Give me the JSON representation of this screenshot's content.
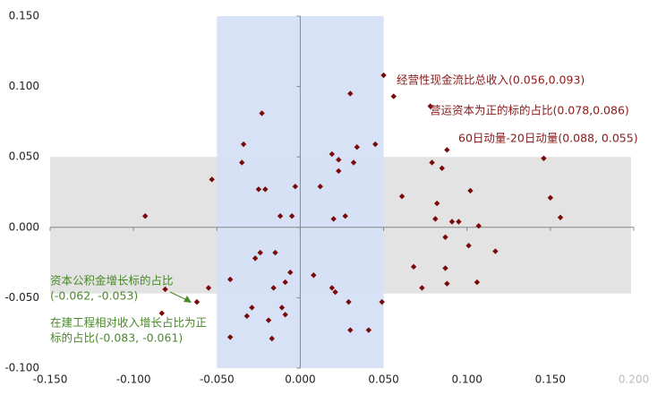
{
  "chart_data": {
    "type": "scatter",
    "x": [
      0.05,
      0.03,
      0.056,
      0.078,
      -0.023,
      -0.034,
      0.045,
      0.034,
      0.019,
      0.088,
      0.146,
      0.023,
      0.032,
      0.079,
      -0.035,
      0.085,
      0.023,
      -0.053,
      -0.003,
      0.012,
      -0.025,
      -0.021,
      0.102,
      0.15,
      0.061,
      0.082,
      -0.093,
      -0.012,
      -0.005,
      0.027,
      0.02,
      0.156,
      0.081,
      0.091,
      0.095,
      0.107,
      0.087,
      0.101,
      0.117,
      -0.024,
      -0.015,
      -0.027,
      0.068,
      0.087,
      -0.006,
      0.008,
      -0.042,
      -0.009,
      0.088,
      0.106,
      -0.016,
      0.073,
      -0.081,
      -0.055,
      0.019,
      0.021,
      -0.062,
      0.029,
      0.049,
      -0.032,
      -0.083,
      -0.029,
      -0.011,
      -0.009,
      -0.019,
      0.03,
      0.041,
      -0.042,
      -0.017
    ],
    "y": [
      0.108,
      0.095,
      0.093,
      0.086,
      0.081,
      0.059,
      0.059,
      0.057,
      0.052,
      0.055,
      0.049,
      0.048,
      0.046,
      0.046,
      0.046,
      0.042,
      0.04,
      0.034,
      0.029,
      0.029,
      0.027,
      0.027,
      0.026,
      0.021,
      0.022,
      0.017,
      0.008,
      0.008,
      0.008,
      0.008,
      0.006,
      0.007,
      0.006,
      0.004,
      0.004,
      0.001,
      -0.007,
      -0.013,
      -0.017,
      -0.018,
      -0.018,
      -0.022,
      -0.028,
      -0.029,
      -0.032,
      -0.034,
      -0.037,
      -0.039,
      -0.04,
      -0.039,
      -0.043,
      -0.043,
      -0.044,
      -0.043,
      -0.043,
      -0.046,
      -0.053,
      -0.053,
      -0.053,
      -0.063,
      -0.061,
      -0.057,
      -0.057,
      -0.062,
      -0.066,
      -0.073,
      -0.073,
      -0.078,
      -0.079
    ],
    "color": "#7a0a0a",
    "xlim": [
      -0.15,
      0.2
    ],
    "ylim": [
      -0.1,
      0.15
    ],
    "xticks": [
      {
        "value": -0.15,
        "label": "-0.150"
      },
      {
        "value": -0.1,
        "label": "-0.100"
      },
      {
        "value": -0.05,
        "label": "-0.050"
      },
      {
        "value": 0,
        "label": "0.000"
      },
      {
        "value": 0.05,
        "label": "0.050"
      },
      {
        "value": 0.1,
        "label": "0.100"
      },
      {
        "value": 0.15,
        "label": "0.150"
      },
      {
        "value": 0.2,
        "label": "0.200"
      }
    ],
    "yticks": [
      {
        "value": -0.1,
        "label": "-0.100"
      },
      {
        "value": -0.05,
        "label": "-0.050"
      },
      {
        "value": 0,
        "label": "0.000"
      },
      {
        "value": 0.05,
        "label": "0.050"
      },
      {
        "value": 0.1,
        "label": "0.100"
      },
      {
        "value": 0.15,
        "label": "0.150"
      }
    ],
    "x_band": {
      "range": [
        -0.05,
        0.05
      ],
      "color": "#d6e0f5"
    },
    "y_band": {
      "range": [
        -0.047,
        0.05
      ],
      "color": "#e3e3e3"
    },
    "annotations": [
      {
        "lines": [
          "经营性现金流比总收入(0.056,0.093)"
        ],
        "color": "#8b1a1a"
      },
      {
        "lines": [
          "营运资本为正的标的占比(0.078,0.086)"
        ],
        "color": "#8b1a1a"
      },
      {
        "lines": [
          "60日动量-20日动量(0.088, 0.055)"
        ],
        "color": "#8b1a1a"
      },
      {
        "lines": [
          "资本公积金增长标的占比",
          "(-0.062, -0.053)"
        ],
        "color": "#4a8a2a"
      },
      {
        "lines": [
          "在建工程相对收入增长占比为正",
          "标的占比(-0.083, -0.061)"
        ],
        "color": "#4a8a2a"
      }
    ]
  }
}
